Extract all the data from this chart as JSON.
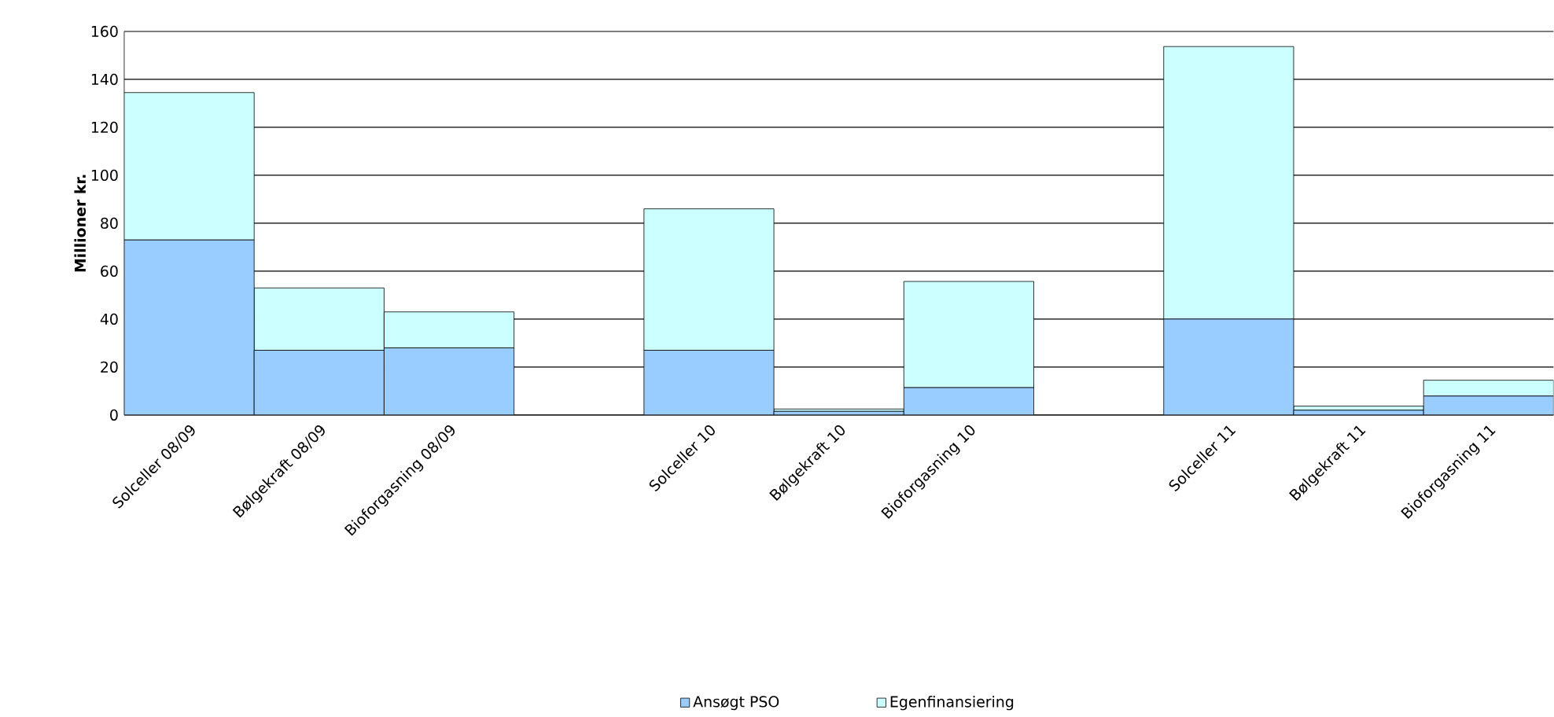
{
  "chart_data": {
    "type": "bar",
    "stacked": true,
    "ylabel": "Millioner kr.",
    "categories": [
      "Solceller 08/09",
      "Bølgekraft 08/09",
      "Bioforgasning 08/09",
      null,
      "Solceller 10",
      "Bølgekraft 10",
      "Bioforgasning 10",
      null,
      "Solceller 11",
      "Bølgekraft 11",
      "Bioforgasning 11"
    ],
    "series": [
      {
        "name": "Ansøgt PSO",
        "color": "#99ccff",
        "values": [
          73,
          27,
          28,
          null,
          27,
          1.5,
          11.4,
          null,
          40,
          2,
          7.9
        ]
      },
      {
        "name": "Egenfinansiering",
        "color": "#ccffff",
        "values": [
          61.5,
          26,
          15,
          null,
          59,
          1,
          44.3,
          null,
          113.7,
          1.7,
          6.6
        ]
      }
    ],
    "ylim": [
      0,
      160
    ],
    "yticks": [
      0,
      20,
      40,
      60,
      80,
      100,
      120,
      140,
      160
    ],
    "grid": "y",
    "legend": "bottom"
  }
}
